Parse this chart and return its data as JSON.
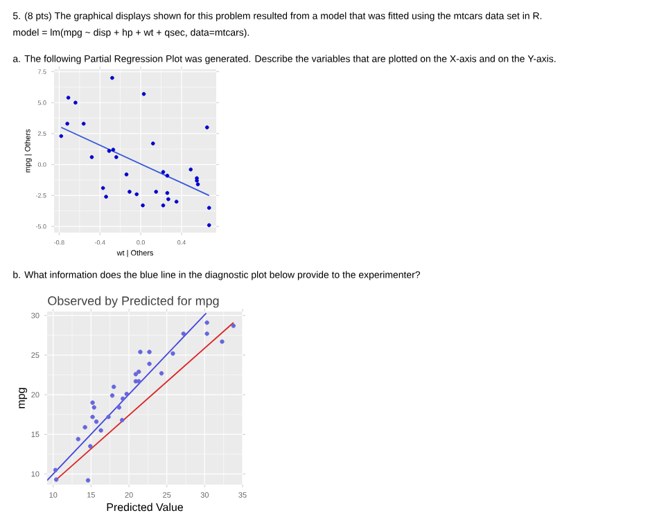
{
  "chart_data": [
    {
      "type": "scatter",
      "annotations": [
        "5. (8 pts) The graphical displays shown for this problem resulted from a model that was fitted using the mtcars data set in R.",
        "model = lm(mpg ~ disp + hp + wt + qsec, data=mtcars).",
        "a. The following Partial Regression Plot was generated. Describe the variables that are plotted on the X-axis and on the Y-axis."
      ],
      "xlabel": "wt | Others",
      "ylabel": "mpg | Others",
      "xlim": [
        -0.85,
        0.74
      ],
      "ylim": [
        -5.5,
        7.7
      ],
      "xticks": [
        -0.8,
        -0.4,
        {
          "value": 0,
          "label": "0.0"
        },
        0.4
      ],
      "yticks": [
        {
          "value": -5,
          "label": "-5.0"
        },
        -2.5,
        {
          "value": 0,
          "label": "0.0"
        },
        2.5,
        {
          "value": 5,
          "label": "5.0"
        },
        7.5
      ],
      "grid": true,
      "series": [
        {
          "type": "scatter",
          "color": "#0000cc",
          "marker": "circle",
          "x": [
            -0.78,
            -0.72,
            -0.71,
            -0.64,
            -0.56,
            -0.48,
            -0.37,
            -0.34,
            -0.31,
            -0.28,
            -0.27,
            -0.24,
            -0.14,
            -0.11,
            -0.04,
            0.02,
            0.03,
            0.12,
            0.15,
            0.22,
            0.22,
            0.26,
            0.26,
            0.27,
            0.35,
            0.49,
            0.55,
            0.55,
            0.56,
            0.65,
            0.67,
            0.67
          ],
          "values": [
            2.3,
            3.3,
            5.4,
            5.0,
            3.3,
            0.6,
            -1.9,
            -2.6,
            1.1,
            7.0,
            1.2,
            0.6,
            -0.8,
            -2.2,
            -2.4,
            -3.3,
            5.7,
            1.7,
            -2.2,
            -0.6,
            -3.3,
            -0.9,
            -2.3,
            -2.8,
            -3.0,
            -0.4,
            -1.1,
            -1.3,
            -1.6,
            3.0,
            -3.5,
            -4.9
          ]
        },
        {
          "type": "line",
          "color": "#3355dd",
          "x": [
            -0.78,
            0.67
          ],
          "values": [
            3.0,
            -2.5
          ]
        }
      ]
    },
    {
      "type": "scatter",
      "annotations": [
        "b. What information does the blue line in the diagnostic plot below provide to the experimenter?"
      ],
      "title": "Observed by Predicted for mpg",
      "xlabel": "Predicted Value",
      "ylabel": "mpg",
      "xlim": [
        9.2,
        35
      ],
      "ylim": [
        8.66,
        30.5
      ],
      "xticks": [
        10,
        15,
        20,
        25,
        30,
        35
      ],
      "yticks": [
        10,
        15,
        20,
        25,
        30
      ],
      "grid": true,
      "series": [
        {
          "type": "scatter",
          "color": "#6666dd",
          "marker": "circle",
          "x": [
            10.3,
            10.4,
            13.3,
            14.2,
            14.6,
            14.9,
            15.2,
            15.2,
            15.4,
            15.7,
            16.3,
            17.3,
            17.8,
            18.0,
            18.7,
            19.2,
            19.1,
            19.7,
            20.9,
            20.9,
            21.3,
            21.5,
            21.3,
            22.7,
            22.7,
            24.3,
            25.8,
            27.2,
            30.3,
            30.3,
            32.3,
            33.8
          ],
          "values": [
            10.5,
            9.3,
            14.4,
            15.9,
            9.2,
            13.5,
            19.0,
            17.2,
            18.4,
            16.6,
            15.5,
            17.2,
            19.9,
            21.0,
            18.4,
            19.5,
            16.8,
            20.1,
            22.6,
            21.7,
            22.9,
            25.4,
            21.7,
            25.4,
            23.9,
            22.7,
            25.2,
            27.7,
            29.1,
            27.7,
            26.7,
            28.7
          ]
        },
        {
          "type": "line",
          "color": "#dd2222",
          "x": [
            10.3,
            33.8
          ],
          "values": [
            9.2,
            29.1
          ]
        },
        {
          "type": "line",
          "color": "#4444dd",
          "x": [
            9.2,
            30.2
          ],
          "values": [
            9.2,
            30.3
          ]
        }
      ]
    }
  ]
}
